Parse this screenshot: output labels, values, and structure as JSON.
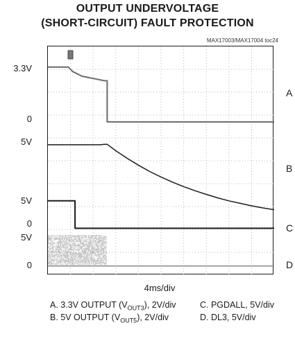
{
  "chart_data": {
    "type": "line",
    "title_line1": "OUTPUT UNDERVOLTAGE",
    "title_line2": "(SHORT-CIRCUIT) FAULT PROTECTION",
    "part_number": "MAX17003/MAX17004 toc24",
    "xlabel": "4ms/div",
    "grid": true,
    "divisions": {
      "x": 10,
      "y": 10
    },
    "level_labels": [
      {
        "text": "3.3V",
        "div": 9.0
      },
      {
        "text": "0",
        "div": 6.8
      },
      {
        "text": "5V",
        "div": 5.8
      },
      {
        "text": "5V",
        "div": 3.2
      },
      {
        "text": "0",
        "div": 2.2
      },
      {
        "text": "5V",
        "div": 1.6
      },
      {
        "text": "0",
        "div": 0.4
      }
    ],
    "channel_labels": [
      {
        "text": "A",
        "div": 7.9
      },
      {
        "text": "B",
        "div": 4.6
      },
      {
        "text": "C",
        "div": 2.0
      },
      {
        "text": "D",
        "div": 0.4
      }
    ],
    "series": [
      {
        "name": "A",
        "color": "#6a6a6a",
        "width": 2.0,
        "x": [
          0,
          0.9,
          1.1,
          1.5,
          2.0,
          2.5,
          2.5,
          2.62,
          2.62,
          10
        ],
        "y": [
          9.1,
          9.1,
          8.9,
          8.7,
          8.6,
          8.5,
          8.5,
          8.5,
          6.7,
          6.7
        ]
      },
      {
        "name": "B",
        "color": "#1a1a1a",
        "width": 1.5,
        "x": [
          0,
          2.3,
          2.5,
          2.62,
          3.0,
          3.5,
          4.0,
          4.5,
          5.0,
          5.5,
          6.0,
          6.5,
          7.0,
          7.5,
          8.0,
          8.5,
          9.0,
          9.5,
          10
        ],
        "y": [
          5.7,
          5.7,
          5.72,
          5.72,
          5.44,
          5.11,
          4.81,
          4.53,
          4.29,
          4.07,
          3.87,
          3.69,
          3.53,
          3.38,
          3.25,
          3.14,
          3.03,
          2.94,
          2.86
        ]
      },
      {
        "name": "C",
        "color": "#1a1a1a",
        "width": 2.0,
        "x": [
          0,
          1.08,
          1.08,
          1.2,
          1.2,
          10
        ],
        "y": [
          3.25,
          3.25,
          3.25,
          3.25,
          2.05,
          2.05
        ]
      },
      {
        "name": "D",
        "color": "#888888",
        "width": 1.5,
        "x": [
          0,
          2.62,
          2.62,
          10
        ],
        "y": [
          0.4,
          0.4,
          0.4,
          0.4
        ]
      }
    ],
    "noise_block": {
      "series": "D",
      "x_start": 0,
      "x_end": 2.6,
      "y_low": 0.45,
      "y_high": 1.75,
      "color": "#9a9a9a"
    },
    "legend": {
      "a_text": "A. 3.3V OUTPUT (V",
      "a_sub": "OUT3",
      "a_tail": "), 2V/div",
      "b_text": "B. 5V OUTPUT (V",
      "b_sub": "OUT5",
      "b_tail": "), 2V/div",
      "c_text": "C. PGDALL, 5V/div",
      "d_text": "D. DL3, 5V/div"
    }
  }
}
